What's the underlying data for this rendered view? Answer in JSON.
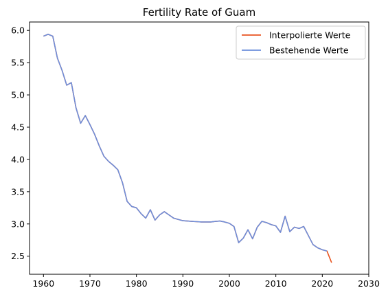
{
  "chart_data": {
    "type": "line",
    "title": "Fertility Rate of Guam",
    "xlabel": "",
    "ylabel": "",
    "xlim": [
      1957,
      2030
    ],
    "ylim": [
      2.22,
      6.13
    ],
    "xticks": [
      1960,
      1970,
      1980,
      1990,
      2000,
      2010,
      2020,
      2030
    ],
    "yticks": [
      2.5,
      3.0,
      3.5,
      4.0,
      4.5,
      5.0,
      5.5,
      6.0
    ],
    "grid": false,
    "legend_position": "top-right",
    "series": [
      {
        "name": "Interpolierte Werte",
        "color": "#e8531f",
        "points": [
          [
            1960,
            5.91
          ],
          [
            1961,
            5.94
          ],
          [
            1962,
            5.91
          ],
          [
            1963,
            5.57
          ],
          [
            1964,
            5.38
          ],
          [
            1965,
            5.15
          ],
          [
            1966,
            5.19
          ],
          [
            1967,
            4.8
          ],
          [
            1968,
            4.56
          ],
          [
            1969,
            4.68
          ],
          [
            1970,
            4.54
          ],
          [
            1971,
            4.39
          ],
          [
            1972,
            4.21
          ],
          [
            1973,
            4.05
          ],
          [
            1974,
            3.97
          ],
          [
            1975,
            3.91
          ],
          [
            1976,
            3.84
          ],
          [
            1977,
            3.64
          ],
          [
            1978,
            3.35
          ],
          [
            1979,
            3.27
          ],
          [
            1980,
            3.25
          ],
          [
            1981,
            3.16
          ],
          [
            1982,
            3.09
          ],
          [
            1983,
            3.22
          ],
          [
            1984,
            3.06
          ],
          [
            1985,
            3.14
          ],
          [
            1986,
            3.19
          ],
          [
            1987,
            3.14
          ],
          [
            1988,
            3.09
          ],
          [
            1989,
            3.07
          ],
          [
            1990,
            3.05
          ],
          [
            1991,
            3.045
          ],
          [
            1992,
            3.04
          ],
          [
            1993,
            3.035
          ],
          [
            1994,
            3.03
          ],
          [
            1995,
            3.03
          ],
          [
            1996,
            3.03
          ],
          [
            1997,
            3.04
          ],
          [
            1998,
            3.045
          ],
          [
            1999,
            3.03
          ],
          [
            2000,
            3.01
          ],
          [
            2001,
            2.96
          ],
          [
            2002,
            2.71
          ],
          [
            2003,
            2.78
          ],
          [
            2004,
            2.91
          ],
          [
            2005,
            2.77
          ],
          [
            2006,
            2.95
          ],
          [
            2007,
            3.04
          ],
          [
            2008,
            3.02
          ],
          [
            2009,
            2.99
          ],
          [
            2010,
            2.97
          ],
          [
            2011,
            2.87
          ],
          [
            2012,
            3.12
          ],
          [
            2013,
            2.88
          ],
          [
            2014,
            2.95
          ],
          [
            2015,
            2.93
          ],
          [
            2016,
            2.96
          ],
          [
            2017,
            2.82
          ],
          [
            2018,
            2.68
          ],
          [
            2019,
            2.63
          ],
          [
            2020,
            2.6
          ],
          [
            2021,
            2.58
          ],
          [
            2022,
            2.4
          ]
        ]
      },
      {
        "name": "Bestehende Werte",
        "color": "#6d8fdc",
        "points": [
          [
            1960,
            5.91
          ],
          [
            1961,
            5.94
          ],
          [
            1962,
            5.91
          ],
          [
            1963,
            5.57
          ],
          [
            1964,
            5.38
          ],
          [
            1965,
            5.15
          ],
          [
            1966,
            5.19
          ],
          [
            1967,
            4.8
          ],
          [
            1968,
            4.56
          ],
          [
            1969,
            4.68
          ],
          [
            1970,
            4.54
          ],
          [
            1971,
            4.39
          ],
          [
            1972,
            4.21
          ],
          [
            1973,
            4.05
          ],
          [
            1974,
            3.97
          ],
          [
            1975,
            3.91
          ],
          [
            1976,
            3.84
          ],
          [
            1977,
            3.64
          ],
          [
            1978,
            3.35
          ],
          [
            1979,
            3.27
          ],
          [
            1980,
            3.25
          ],
          [
            1981,
            3.16
          ],
          [
            1982,
            3.09
          ],
          [
            1983,
            3.22
          ],
          [
            1984,
            3.06
          ],
          [
            1985,
            3.14
          ],
          [
            1986,
            3.19
          ],
          [
            1987,
            3.14
          ],
          [
            1988,
            3.09
          ],
          [
            1989,
            3.07
          ],
          [
            1990,
            3.05
          ],
          [
            1991,
            3.045
          ],
          [
            1992,
            3.04
          ],
          [
            1993,
            3.035
          ],
          [
            1994,
            3.03
          ],
          [
            1995,
            3.03
          ],
          [
            1996,
            3.03
          ],
          [
            1997,
            3.04
          ],
          [
            1998,
            3.045
          ],
          [
            1999,
            3.03
          ],
          [
            2000,
            3.01
          ],
          [
            2001,
            2.96
          ],
          [
            2002,
            2.71
          ],
          [
            2003,
            2.78
          ],
          [
            2004,
            2.91
          ],
          [
            2005,
            2.77
          ],
          [
            2006,
            2.95
          ],
          [
            2007,
            3.04
          ],
          [
            2008,
            3.02
          ],
          [
            2009,
            2.99
          ],
          [
            2010,
            2.97
          ],
          [
            2011,
            2.87
          ],
          [
            2012,
            3.12
          ],
          [
            2013,
            2.88
          ],
          [
            2014,
            2.95
          ],
          [
            2015,
            2.93
          ],
          [
            2016,
            2.96
          ],
          [
            2017,
            2.82
          ],
          [
            2018,
            2.68
          ],
          [
            2019,
            2.63
          ],
          [
            2020,
            2.6
          ],
          [
            2021,
            2.58
          ]
        ]
      }
    ]
  }
}
